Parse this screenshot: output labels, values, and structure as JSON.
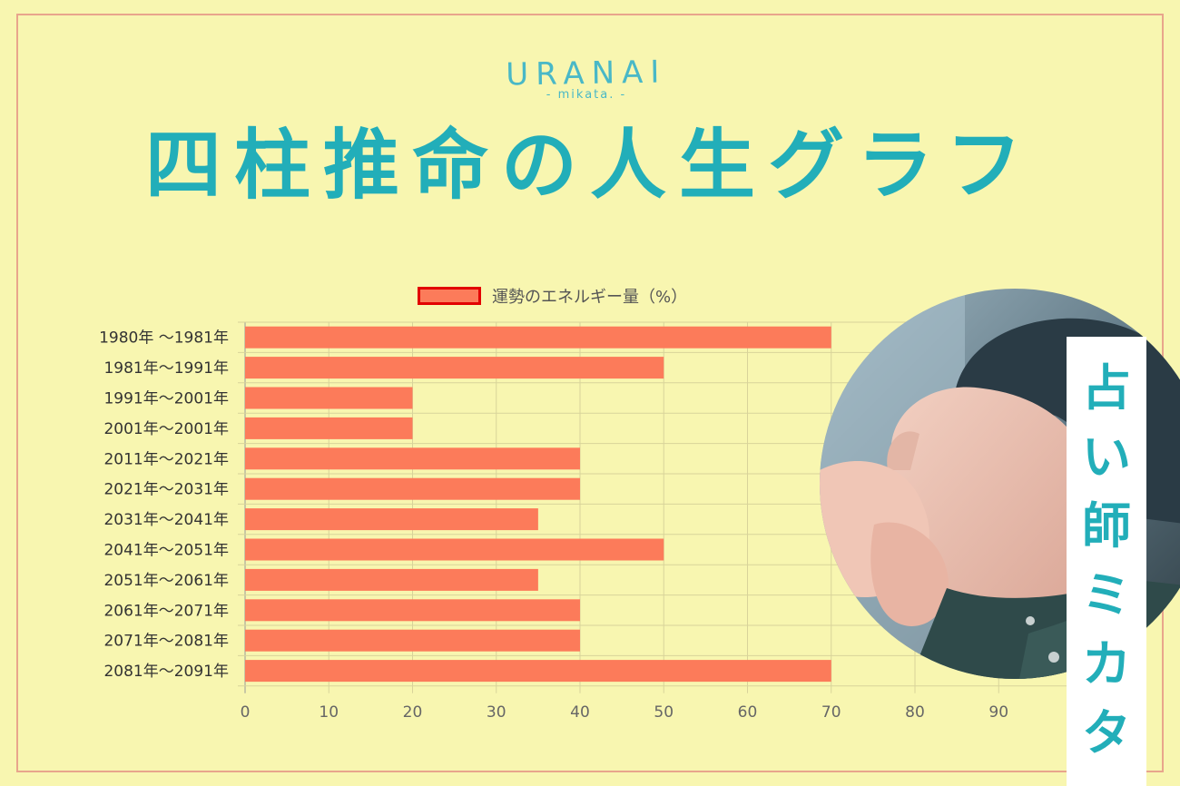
{
  "logo": {
    "name": "URANAI",
    "sub": "- mikata. -"
  },
  "title": "四柱推命の人生グラフ",
  "banner": {
    "text": "占い師ミカタ"
  },
  "colors": {
    "background": "#f8f6b0",
    "frame": "#e8a58c",
    "title": "#22aeb9",
    "bar": "#fc7b5a",
    "legend_border": "#e20000"
  },
  "chart_data": {
    "type": "bar",
    "orientation": "horizontal",
    "categories": [
      "1980年 〜1981年",
      "1981年〜1991年",
      "1991年〜2001年",
      "2001年〜2001年",
      "2011年〜2021年",
      "2021年〜2031年",
      "2031年〜2041年",
      "2041年〜2051年",
      "2051年〜2061年",
      "2061年〜2071年",
      "2071年〜2081年",
      "2081年〜2091年"
    ],
    "series": [
      {
        "name": "運勢のエネルギー量（%）",
        "values": [
          70,
          50,
          20,
          20,
          40,
          40,
          35,
          50,
          35,
          40,
          40,
          70
        ]
      }
    ],
    "xticks": [
      "0",
      "10",
      "20",
      "30",
      "40",
      "50",
      "60",
      "70",
      "80",
      "90"
    ],
    "xlim": [
      0,
      100
    ],
    "grid": true,
    "legend": "top-center"
  }
}
